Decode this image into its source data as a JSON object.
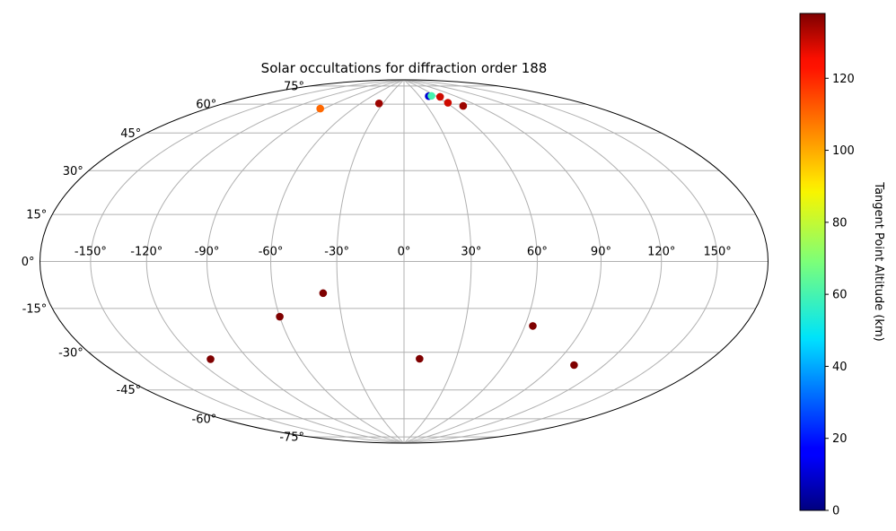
{
  "chart_data": {
    "type": "scatter",
    "projection": "hammer",
    "title": "Solar occultations for diffraction order 188",
    "xlabel": "",
    "ylabel": "",
    "lon_ticks": [
      "-150°",
      "-120°",
      "-90°",
      "-60°",
      "-30°",
      "0°",
      "30°",
      "60°",
      "90°",
      "120°",
      "150°"
    ],
    "lat_ticks": [
      "75°",
      "60°",
      "45°",
      "30°",
      "15°",
      "0°",
      "-15°",
      "-30°",
      "-45°",
      "-60°",
      "-75°"
    ],
    "grid": true,
    "colorbar": {
      "label": "Tangent Point Altitude (km)",
      "ticks": [
        "0",
        "20",
        "40",
        "60",
        "80",
        "100",
        "120"
      ],
      "range": [
        0,
        138
      ],
      "colormap": "jet"
    },
    "series": [
      {
        "points": [
          {
            "lon": -94,
            "lat": 69.5,
            "alt_from": 110,
            "alt_to": 110
          }
        ]
      },
      {
        "points": [
          {
            "lon": -35.5,
            "lat": 75.5,
            "alt_from": 2,
            "alt_to": 135
          }
        ]
      },
      {
        "points": [
          {
            "lon": 47.5,
            "lat": 79.5,
            "alt_from": 0,
            "alt_to": 10
          },
          {
            "lon": 53,
            "lat": 79.5,
            "alt_from": 10,
            "alt_to": 60
          },
          {
            "lon": 65,
            "lat": 78.5,
            "alt_from": 60,
            "alt_to": 130
          }
        ]
      },
      {
        "points": [
          {
            "lon": 62,
            "lat": 75,
            "alt_from": 5,
            "alt_to": 130
          }
        ]
      },
      {
        "points": [
          {
            "lon": 74,
            "lat": 72.5,
            "alt_from": 20,
            "alt_to": 135
          }
        ]
      },
      {
        "points": [
          {
            "lon": -37,
            "lat": -14,
            "alt_from": 15,
            "alt_to": 138
          }
        ]
      },
      {
        "points": [
          {
            "lon": -60,
            "lat": -24,
            "alt_from": 25,
            "alt_to": 138
          }
        ]
      },
      {
        "points": [
          {
            "lon": -112,
            "lat": -40,
            "alt_from": 25,
            "alt_to": 138
          }
        ]
      },
      {
        "points": [
          {
            "lon": 9,
            "lat": -44.5,
            "alt_from": 30,
            "alt_to": 138
          }
        ]
      },
      {
        "points": [
          {
            "lon": 64,
            "lat": -28,
            "alt_from": 35,
            "alt_to": 138
          }
        ]
      },
      {
        "points": [
          {
            "lon": 102,
            "lat": -43.5,
            "alt_from": 35,
            "alt_to": 138
          }
        ]
      }
    ]
  },
  "colors": {
    "grid": "#b0b0b0",
    "frame": "#000000"
  }
}
